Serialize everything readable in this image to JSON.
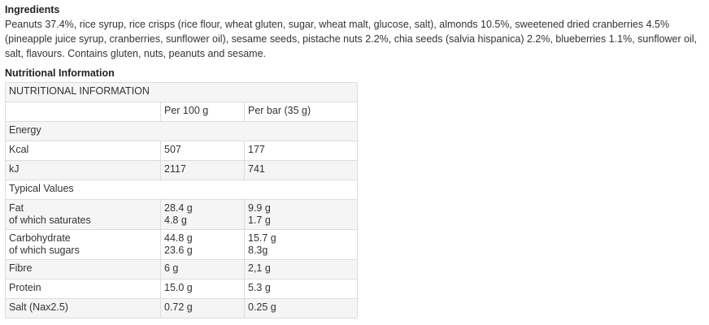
{
  "ingredients": {
    "heading": "Ingredients",
    "text": "Peanuts 37.4%, rice syrup, rice crisps (rice flour, wheat gluten, sugar, wheat malt, glucose, salt), almonds 10.5%, sweetened dried cranberries 4.5% (pineapple juice syrup, cranberries, sunflower oil), sesame seeds, pistache nuts 2.2%, chia seeds (salvia hispanica) 2.2%, blueberries 1.1%, sunflower oil, salt, flavours. Contains gluten, nuts, peanuts and sesame."
  },
  "nutrition": {
    "heading": "Nutritional Information",
    "table_title": "NUTRITIONAL INFORMATION",
    "columns": [
      "",
      "Per 100 g",
      "Per bar (35 g)"
    ],
    "rows": [
      {
        "label": [
          "Energy"
        ],
        "per100": [],
        "perbar": []
      },
      {
        "label": [
          "Kcal"
        ],
        "per100": [
          "507"
        ],
        "perbar": [
          "177"
        ]
      },
      {
        "label": [
          "kJ"
        ],
        "per100": [
          "2117"
        ],
        "perbar": [
          "741"
        ]
      },
      {
        "label": [
          "Typical Values"
        ],
        "per100": [],
        "perbar": []
      },
      {
        "label": [
          "Fat",
          "of which saturates"
        ],
        "per100": [
          "28.4 g",
          "4.8 g"
        ],
        "perbar": [
          "9.9 g",
          "1.7 g"
        ]
      },
      {
        "label": [
          "Carbohydrate",
          "of which sugars"
        ],
        "per100": [
          "44.8 g",
          "23.6 g"
        ],
        "perbar": [
          "15.7 g",
          "8.3g"
        ]
      },
      {
        "label": [
          "Fibre"
        ],
        "per100": [
          " 6 g"
        ],
        "perbar": [
          "2,1 g"
        ]
      },
      {
        "label": [
          "Protein"
        ],
        "per100": [
          "15.0 g"
        ],
        "perbar": [
          "5.3 g"
        ]
      },
      {
        "label": [
          "Salt (Nax2.5)"
        ],
        "per100": [
          "0.72 g"
        ],
        "perbar": [
          "0.25 g"
        ]
      }
    ]
  }
}
